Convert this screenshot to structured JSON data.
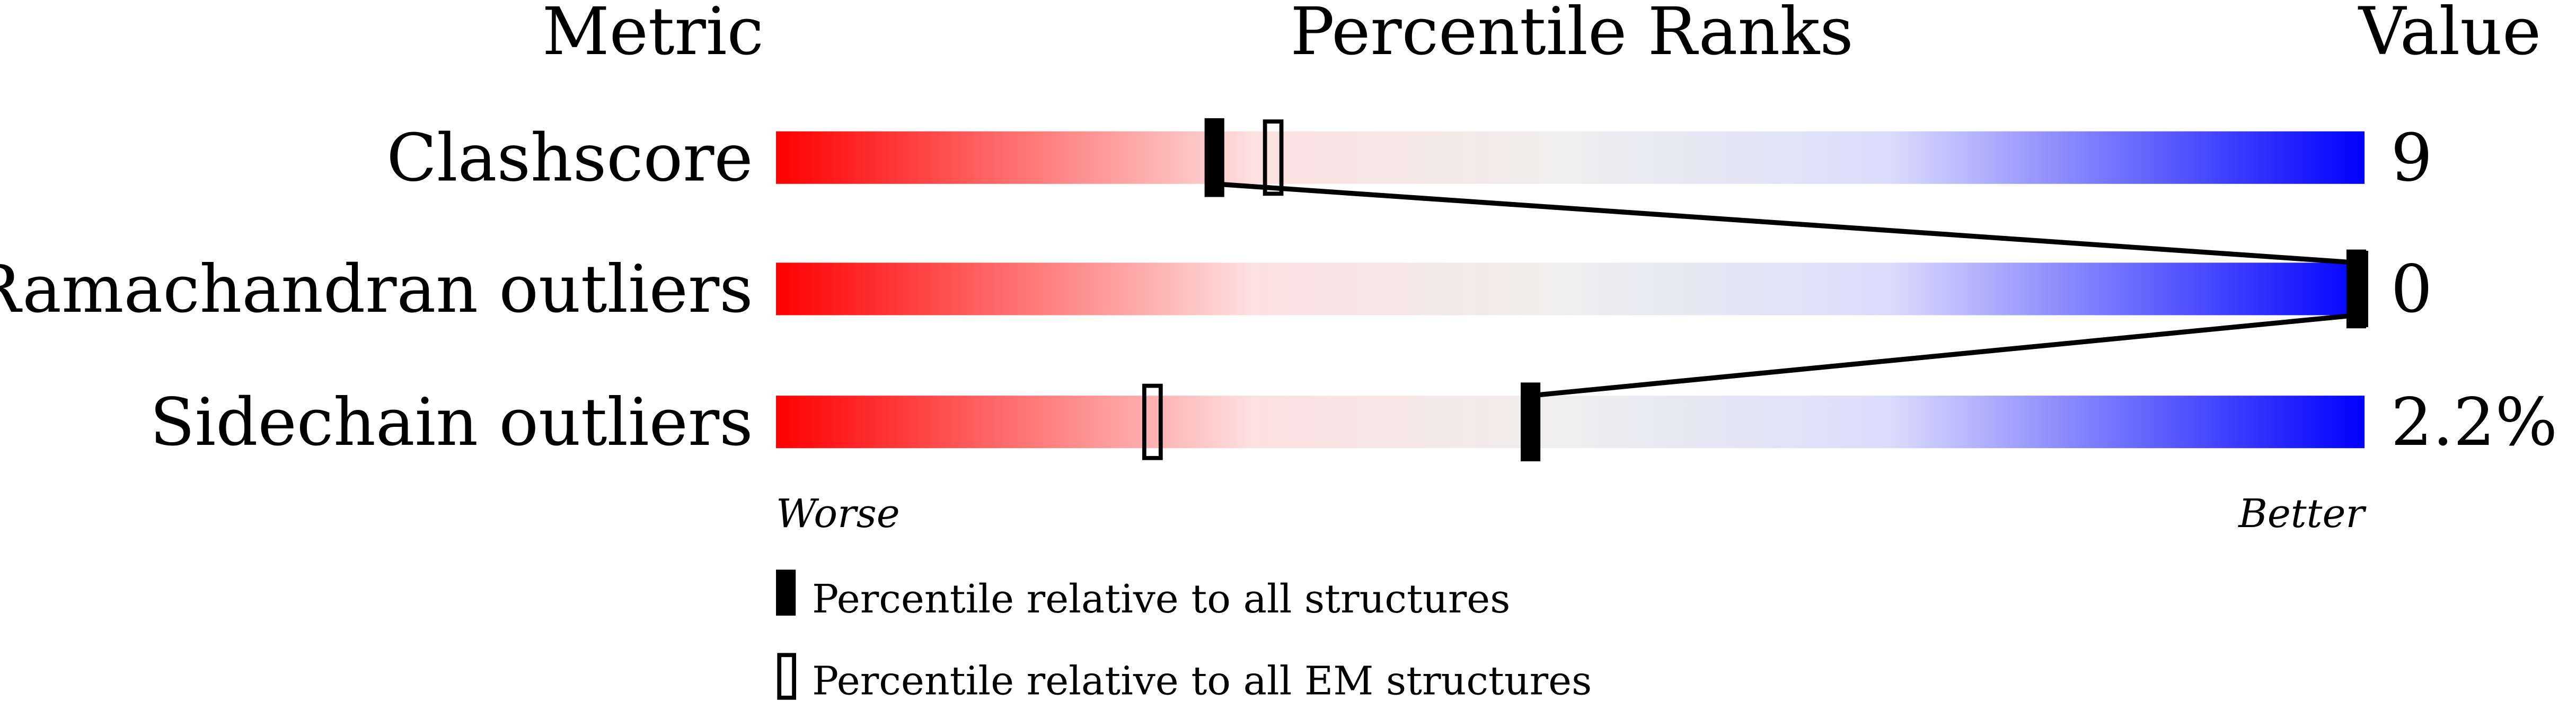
{
  "chart_data": {
    "type": "percentile-slider",
    "headers": {
      "metric": "Metric",
      "percentile": "Percentile Ranks",
      "value": "Value"
    },
    "xlim": [
      0,
      100
    ],
    "axis_labels": {
      "left": "Worse",
      "right": "Better"
    },
    "gradient_colors": [
      "#ff0000",
      "#fde0e0",
      "#eeeeee",
      "#dcdcfc",
      "#0000ff"
    ],
    "rows": [
      {
        "metric": "Clashscore",
        "value": "9",
        "percentile_all": 27.6,
        "percentile_em": 31.3
      },
      {
        "metric": "Ramachandran outliers",
        "value": "0",
        "percentile_all": 100,
        "percentile_em": 100
      },
      {
        "metric": "Sidechain outliers",
        "value": "2.2%",
        "percentile_all": 47.5,
        "percentile_em": 23.7
      }
    ],
    "legend": [
      {
        "marker": "filled",
        "label": "Percentile relative to all structures"
      },
      {
        "marker": "hollow",
        "label": "Percentile relative to all EM structures"
      }
    ]
  }
}
